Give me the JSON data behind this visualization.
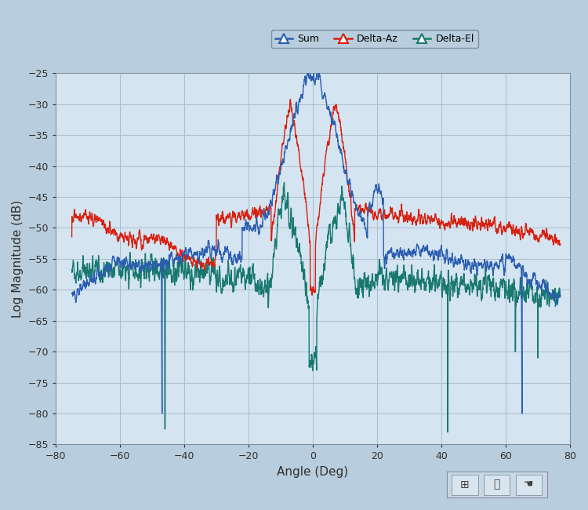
{
  "xlabel": "Angle (Deg)",
  "ylabel": "Log Magnitude (dB)",
  "xlim": [
    -80,
    80
  ],
  "ylim": [
    -85,
    -25
  ],
  "yticks": [
    -85,
    -80,
    -75,
    -70,
    -65,
    -60,
    -55,
    -50,
    -45,
    -40,
    -35,
    -30,
    -25
  ],
  "xticks": [
    -80,
    -60,
    -40,
    -20,
    0,
    20,
    40,
    60,
    80
  ],
  "bg_color": "#b8cede",
  "plot_bg_color": "#d4e4f0",
  "grid_color": "#a8bece",
  "line_sum": "#2a5db0",
  "line_delta_az": "#d82010",
  "line_delta_el": "#187870",
  "lw": 1.0
}
